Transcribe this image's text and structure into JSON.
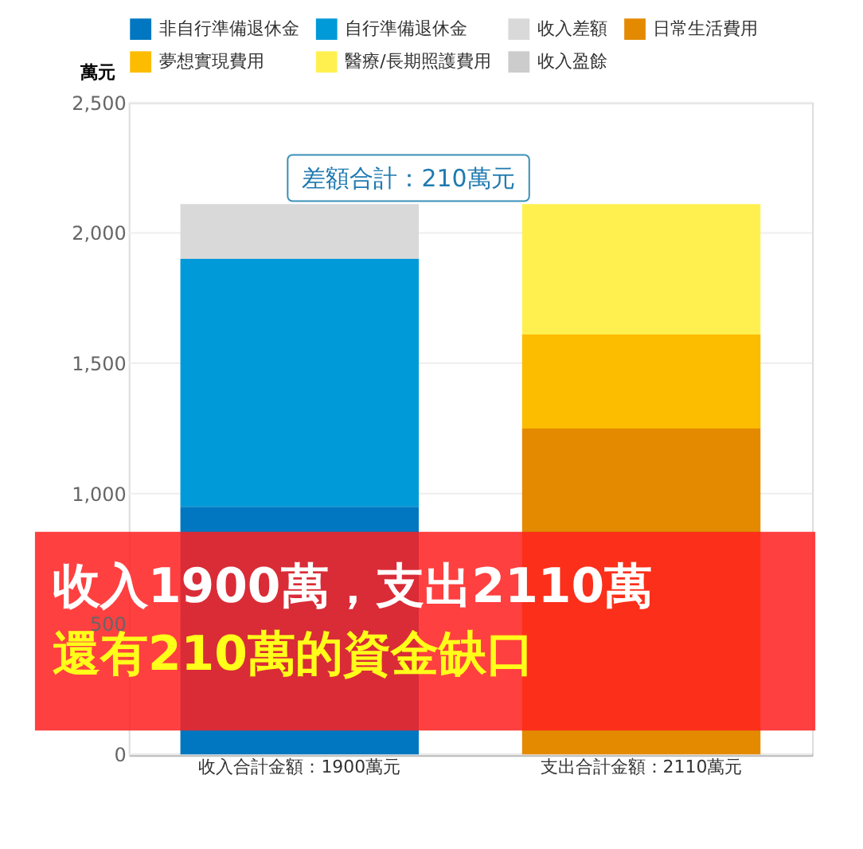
{
  "chart_data": {
    "type": "bar",
    "stacked": true,
    "ylabel": "萬元",
    "categories": [
      "收入合計金額：1900萬元",
      "支出合計金額：2110萬元"
    ],
    "series": [
      {
        "name": "非自行準備退休金",
        "color": "#0077c0",
        "values": [
          950,
          0
        ]
      },
      {
        "name": "自行準備退休金",
        "color": "#009ad8",
        "values": [
          950,
          0
        ]
      },
      {
        "name": "收入差額",
        "color": "#d9d9d9",
        "values": [
          210,
          0
        ]
      },
      {
        "name": "日常生活費用",
        "color": "#e38a00",
        "values": [
          0,
          1250
        ]
      },
      {
        "name": "夢想實現費用",
        "color": "#fcbc00",
        "values": [
          0,
          360
        ]
      },
      {
        "name": "醫療/長期照護費用",
        "color": "#fff050",
        "values": [
          0,
          500
        ]
      },
      {
        "name": "收入盈餘",
        "color": "#cccccc",
        "values": [
          0,
          0
        ]
      }
    ],
    "ylim": [
      0,
      2500
    ],
    "yticks": [
      {
        "value": 0,
        "label": "0"
      },
      {
        "value": 500,
        "label": "500"
      },
      {
        "value": 1000,
        "label": "1,000"
      },
      {
        "value": 1500,
        "label": "1,500"
      },
      {
        "value": 2000,
        "label": "2,000"
      },
      {
        "value": 2500,
        "label": "2,500"
      }
    ],
    "grid": "y",
    "legend": "top",
    "annotations": [
      "差額合計：210萬元",
      "收入1900萬，支出2110萬",
      "還有210萬的資金缺口"
    ]
  }
}
